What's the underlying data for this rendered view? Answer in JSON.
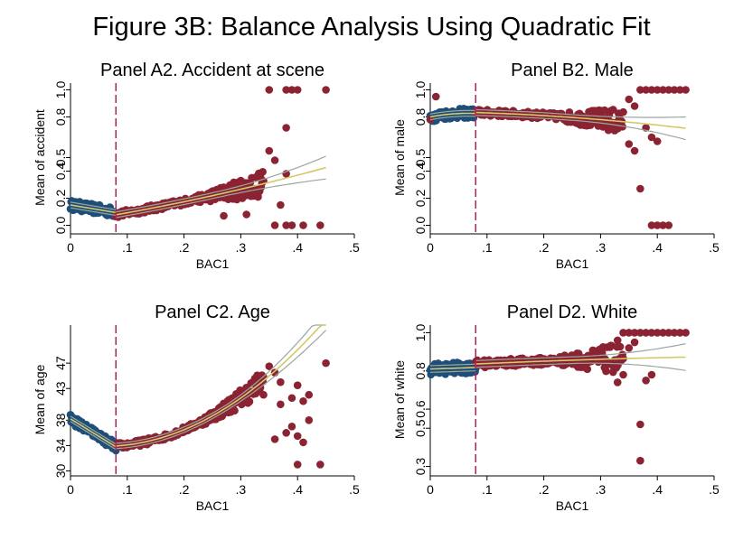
{
  "figure_title": "Figure 3B: Balance Analysis Using Quadratic Fit",
  "colors": {
    "left_dots": "#1f4e79",
    "right_dots": "#8b2332",
    "cutoff": "#b0245a",
    "fit": "#9aa7a0",
    "fit_center": "#d4c96a"
  },
  "chart_data": [
    {
      "type": "scatter",
      "title": "Panel A2. Accident at scene",
      "xlabel": "BAC1",
      "ylabel": "Mean of accident",
      "xlim": [
        0,
        0.5
      ],
      "ylim": [
        -0.05,
        1.05
      ],
      "xticks": [
        "0",
        ".1",
        ".2",
        ".3",
        ".4",
        ".5"
      ],
      "xtick_values": [
        0,
        0.1,
        0.2,
        0.3,
        0.4,
        0.5
      ],
      "yticks": [
        "0.0",
        "0.2",
        "0.4",
        "0.5",
        "0.8",
        "1.0"
      ],
      "ytick_values": [
        0,
        0.2,
        0.4,
        0.5,
        0.8,
        1.0
      ],
      "cutoff": 0.08,
      "fit_left": [
        0.15,
        -0.7,
        0
      ],
      "fit_right": [
        0.022,
        0.65,
        0.55
      ],
      "fit_range_right": [
        0.08,
        0.45
      ],
      "band": 0.03,
      "outliers": [
        [
          0.35,
          1.0
        ],
        [
          0.38,
          1.0
        ],
        [
          0.39,
          1.0
        ],
        [
          0.4,
          1.0
        ],
        [
          0.45,
          1.0
        ],
        [
          0.38,
          0.72
        ],
        [
          0.35,
          0.55
        ],
        [
          0.36,
          0.48
        ],
        [
          0.38,
          0.38
        ],
        [
          0.37,
          0.15
        ],
        [
          0.31,
          0.08
        ],
        [
          0.36,
          0.0
        ],
        [
          0.38,
          0.0
        ],
        [
          0.39,
          0.0
        ],
        [
          0.41,
          0.0
        ],
        [
          0.44,
          0.0
        ],
        [
          0.3,
          0.33
        ],
        [
          0.33,
          0.22
        ],
        [
          0.27,
          0.07
        ]
      ]
    },
    {
      "type": "scatter",
      "title": "Panel B2. Male",
      "xlabel": "BAC1",
      "ylabel": "Mean of male",
      "xlim": [
        0,
        0.5
      ],
      "ylim": [
        -0.05,
        1.05
      ],
      "xticks": [
        "0",
        ".1",
        ".2",
        ".3",
        ".4",
        ".5"
      ],
      "xtick_values": [
        0,
        0.1,
        0.2,
        0.3,
        0.4,
        0.5
      ],
      "yticks": [
        "0.0",
        "0.2",
        "0.4",
        "0.5",
        "0.8",
        "1.0"
      ],
      "ytick_values": [
        0,
        0.2,
        0.4,
        0.5,
        0.8,
        1.0
      ],
      "cutoff": 0.08,
      "fit_left": [
        0.8,
        0.8,
        -6.0
      ],
      "fit_right": [
        0.84,
        -0.05,
        -0.5
      ],
      "fit_range_right": [
        0.08,
        0.45
      ],
      "band": 0.03,
      "outliers": [
        [
          0.37,
          1.0
        ],
        [
          0.38,
          1.0
        ],
        [
          0.39,
          1.0
        ],
        [
          0.4,
          1.0
        ],
        [
          0.41,
          1.0
        ],
        [
          0.42,
          1.0
        ],
        [
          0.43,
          1.0
        ],
        [
          0.44,
          1.0
        ],
        [
          0.45,
          1.0
        ],
        [
          0.35,
          0.6
        ],
        [
          0.36,
          0.55
        ],
        [
          0.38,
          0.72
        ],
        [
          0.39,
          0.65
        ],
        [
          0.4,
          0.62
        ],
        [
          0.37,
          0.27
        ],
        [
          0.39,
          0.0
        ],
        [
          0.4,
          0.0
        ],
        [
          0.41,
          0.0
        ],
        [
          0.42,
          0.0
        ],
        [
          0.35,
          0.93
        ],
        [
          0.36,
          0.88
        ],
        [
          0.01,
          0.95
        ],
        [
          0.0,
          0.78
        ]
      ]
    },
    {
      "type": "scatter",
      "title": "Panel C2. Age",
      "xlabel": "BAC1",
      "ylabel": "Mean of age",
      "xlim": [
        0,
        0.5
      ],
      "ylim": [
        29.5,
        53
      ],
      "xticks": [
        "0",
        ".1",
        ".2",
        ".3",
        ".4",
        ".5"
      ],
      "xtick_values": [
        0,
        0.1,
        0.2,
        0.3,
        0.4,
        0.5
      ],
      "yticks": [
        "30",
        "34",
        "38",
        "43",
        "47"
      ],
      "ytick_values": [
        30,
        34,
        38,
        43,
        47
      ],
      "cutoff": 0.08,
      "fit_left": [
        38.2,
        -55,
        0
      ],
      "fit_right": [
        34.3,
        -15,
        130
      ],
      "fit_range_right": [
        0.08,
        0.45
      ],
      "band": 0.6,
      "outliers": [
        [
          0.35,
          46.5
        ],
        [
          0.36,
          45.5
        ],
        [
          0.37,
          40.5
        ],
        [
          0.38,
          36.0
        ],
        [
          0.39,
          37.0
        ],
        [
          0.4,
          43.5
        ],
        [
          0.41,
          41.0
        ],
        [
          0.42,
          38.0
        ],
        [
          0.4,
          35.5
        ],
        [
          0.41,
          34.5
        ],
        [
          0.4,
          31.0
        ],
        [
          0.44,
          31.0
        ],
        [
          0.45,
          47.0
        ],
        [
          0.36,
          35.0
        ],
        [
          0.39,
          41.5
        ],
        [
          0.42,
          42.0
        ],
        [
          0.37,
          44.0
        ],
        [
          0.34,
          42.0
        ]
      ]
    },
    {
      "type": "scatter",
      "title": "Panel D2. White",
      "xlabel": "BAC1",
      "ylabel": "Mean of white",
      "xlim": [
        0,
        0.5
      ],
      "ylim": [
        0.26,
        1.04
      ],
      "xticks": [
        "0",
        ".1",
        ".2",
        ".3",
        ".4",
        ".5"
      ],
      "xtick_values": [
        0,
        0.1,
        0.2,
        0.3,
        0.4,
        0.5
      ],
      "yticks": [
        "0.3",
        "0.5",
        "0.6",
        "0.8",
        "1.0"
      ],
      "ytick_values": [
        0.3,
        0.5,
        0.6,
        0.8,
        1.0
      ],
      "cutoff": 0.08,
      "fit_left": [
        0.81,
        0.1,
        0
      ],
      "fit_right": [
        0.825,
        0.15,
        -0.1
      ],
      "fit_range_right": [
        0.08,
        0.45
      ],
      "band": 0.025,
      "outliers": [
        [
          0.34,
          1.0
        ],
        [
          0.35,
          1.0
        ],
        [
          0.36,
          1.0
        ],
        [
          0.37,
          1.0
        ],
        [
          0.38,
          1.0
        ],
        [
          0.39,
          1.0
        ],
        [
          0.4,
          1.0
        ],
        [
          0.41,
          1.0
        ],
        [
          0.42,
          1.0
        ],
        [
          0.43,
          1.0
        ],
        [
          0.44,
          1.0
        ],
        [
          0.45,
          1.0
        ],
        [
          0.33,
          0.96
        ],
        [
          0.35,
          0.92
        ],
        [
          0.36,
          0.95
        ],
        [
          0.37,
          0.52
        ],
        [
          0.37,
          0.33
        ],
        [
          0.34,
          0.78
        ],
        [
          0.38,
          0.75
        ],
        [
          0.39,
          0.78
        ],
        [
          0.33,
          0.74
        ]
      ]
    }
  ]
}
